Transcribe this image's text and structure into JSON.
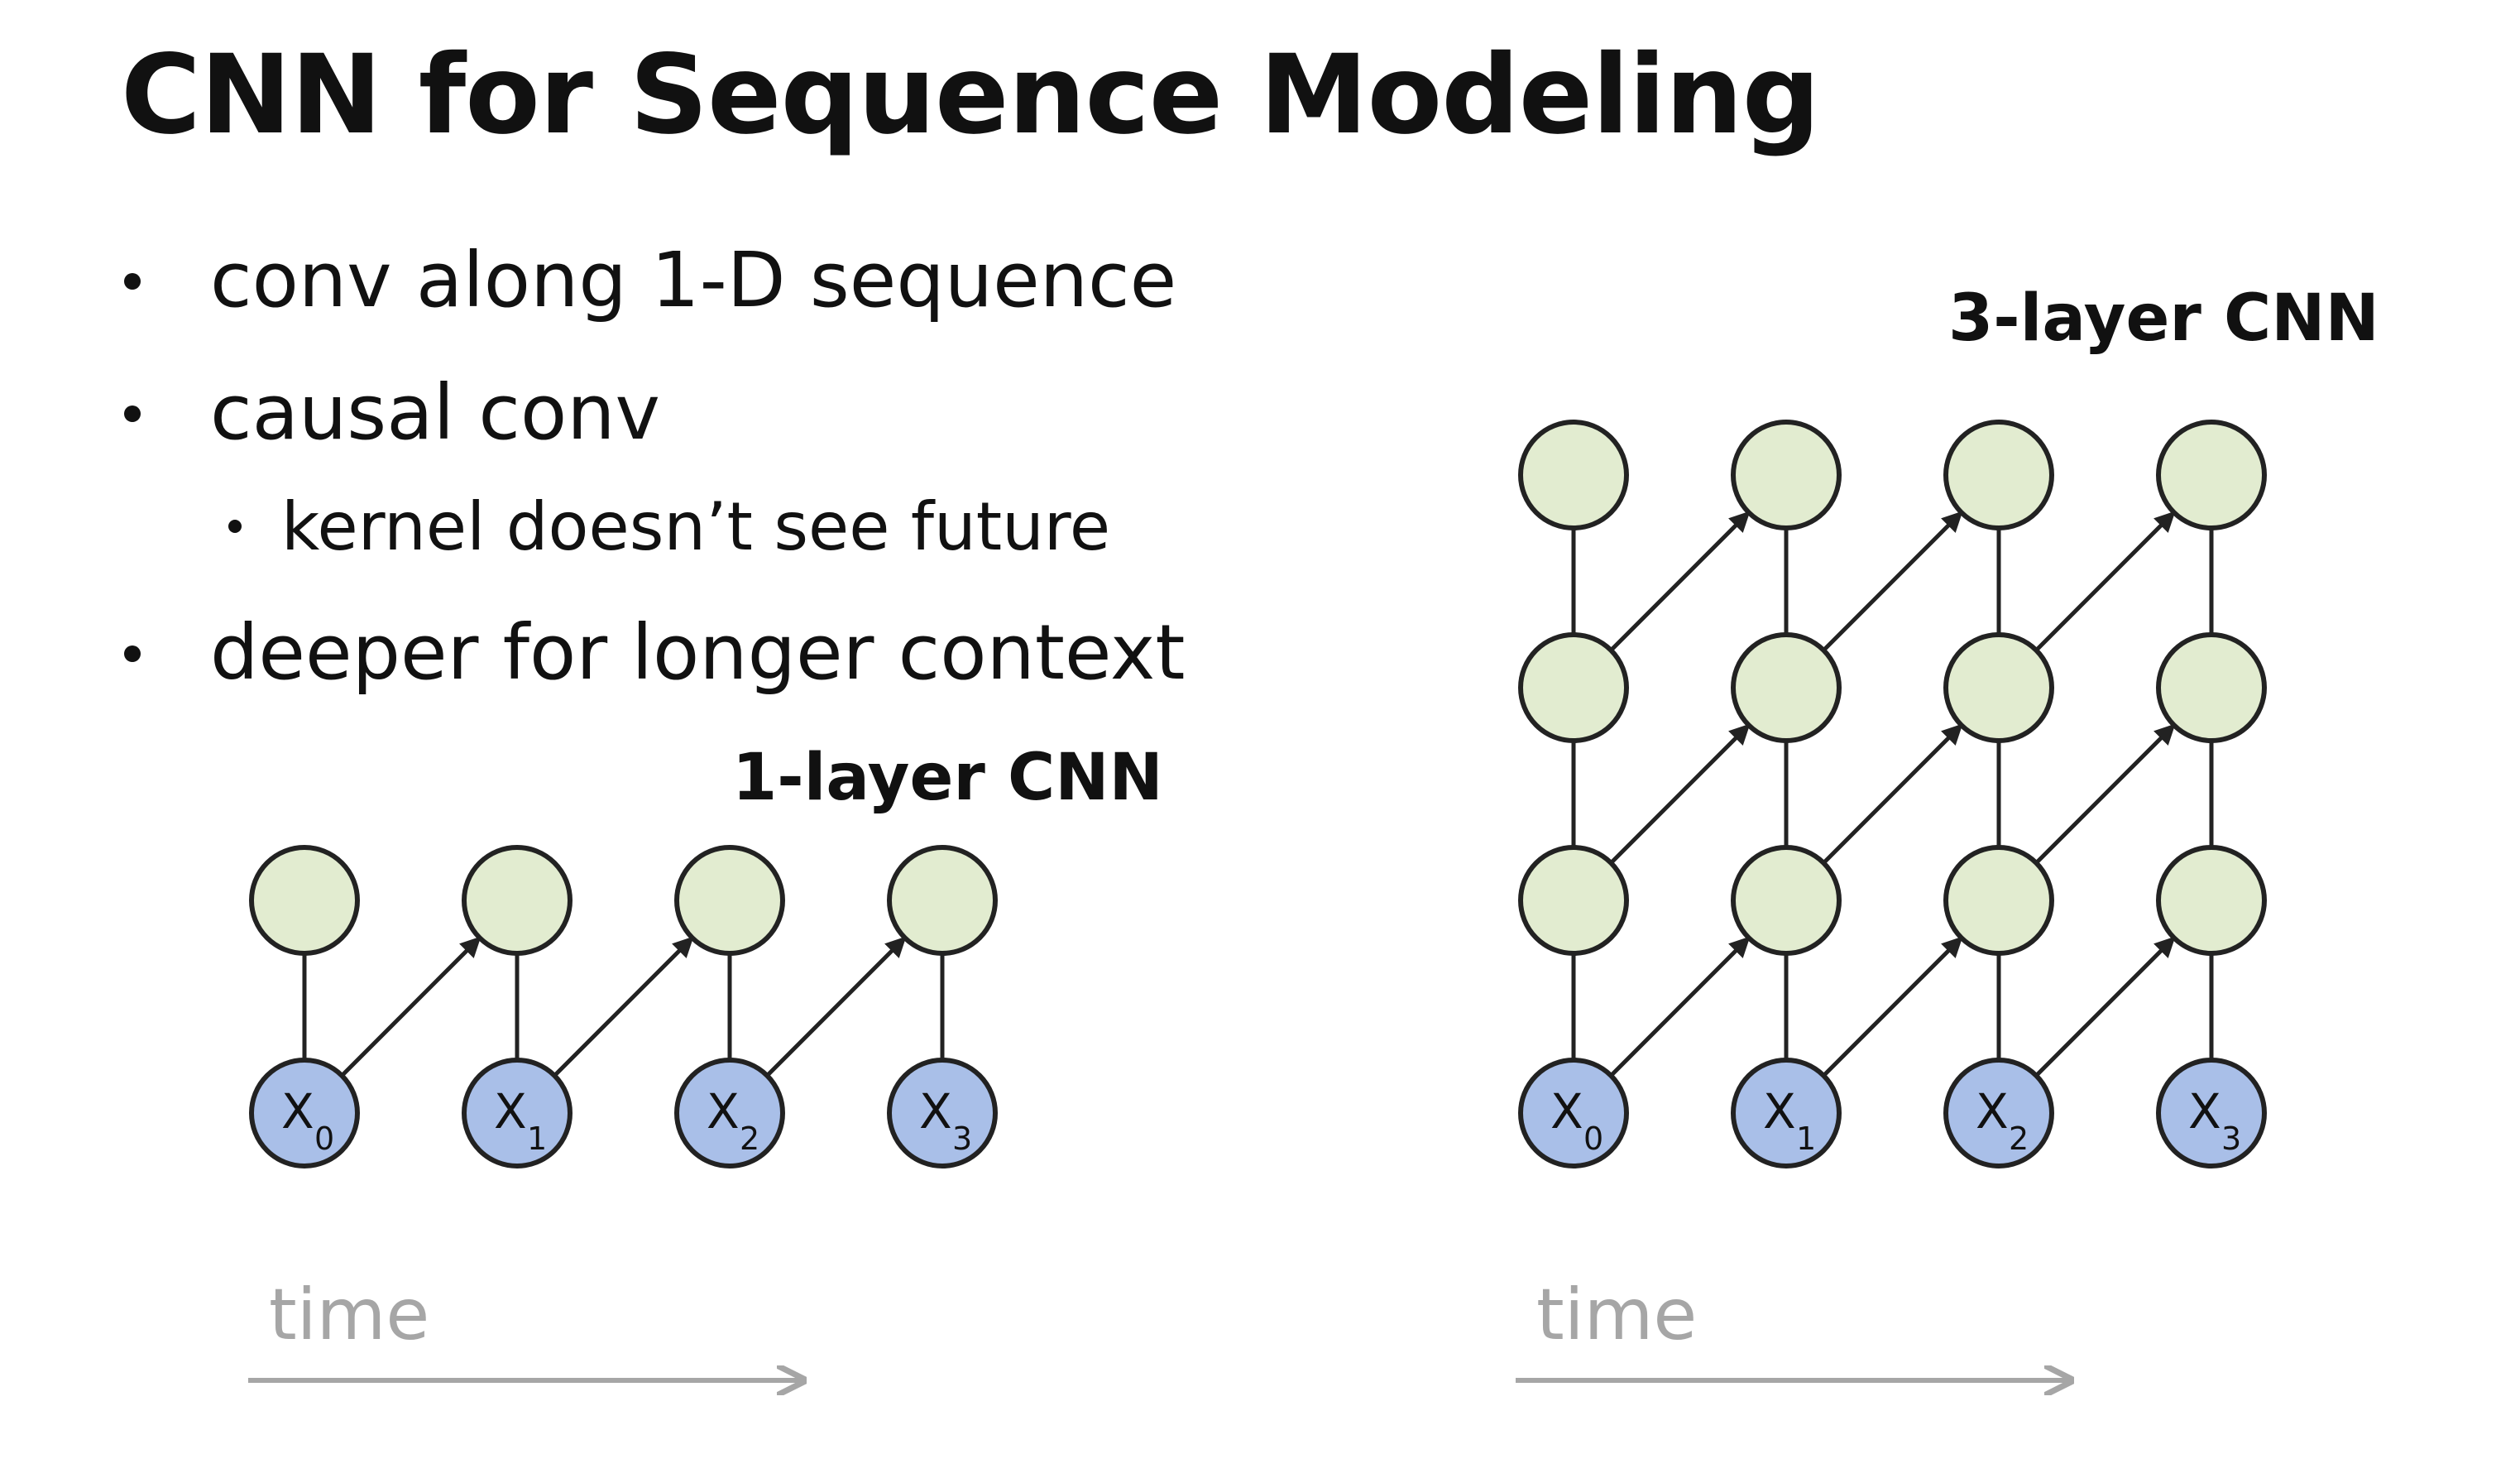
{
  "slide": {
    "title": "CNN for Sequence Modeling",
    "bullets": [
      {
        "level": 1,
        "text": "conv along 1-D sequence"
      },
      {
        "level": 1,
        "text": "causal conv"
      },
      {
        "level": 2,
        "text": "kernel doesn’t see future"
      },
      {
        "level": 1,
        "text": "deeper for longer context"
      }
    ]
  },
  "diagrams": [
    {
      "label": "1-layer CNN",
      "layers": 1,
      "inputs": [
        {
          "var": "X",
          "sub": "0"
        },
        {
          "var": "X",
          "sub": "1"
        },
        {
          "var": "X",
          "sub": "2"
        },
        {
          "var": "X",
          "sub": "3"
        }
      ],
      "time_label": "time"
    },
    {
      "label": "3-layer CNN",
      "layers": 3,
      "inputs": [
        {
          "var": "X",
          "sub": "0"
        },
        {
          "var": "X",
          "sub": "1"
        },
        {
          "var": "X",
          "sub": "2"
        },
        {
          "var": "X",
          "sub": "3"
        }
      ],
      "time_label": "time"
    }
  ],
  "colors": {
    "output_node": "#e2ecd0",
    "input_node": "#a9bfe8",
    "edge": "#222222",
    "time_axis": "#a6a6a6"
  }
}
